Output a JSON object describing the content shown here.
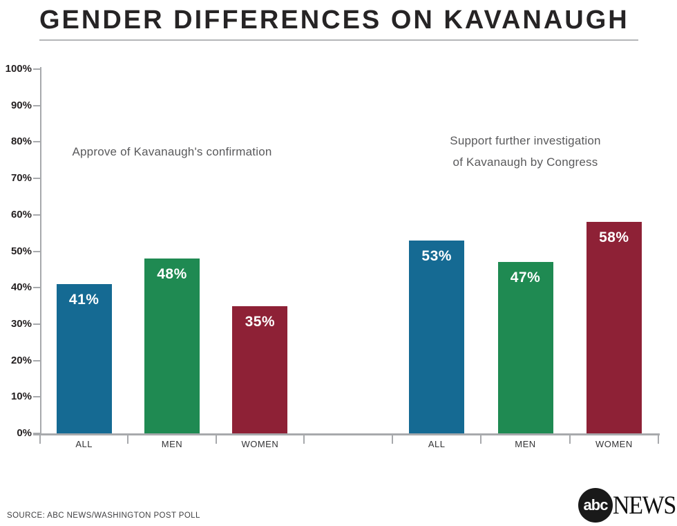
{
  "title": "GENDER DIFFERENCES ON KAVANAUGH",
  "footer": {
    "source": "SOURCE: ABC NEWS/WASHINGTON POST POLL",
    "logo": {
      "abc": "abc",
      "news": "NEWS"
    }
  },
  "chart_data": {
    "type": "bar",
    "title": "GENDER DIFFERENCES ON KAVANAUGH",
    "ylim": [
      0,
      100
    ],
    "y_ticks": [
      0,
      10,
      20,
      30,
      40,
      50,
      60,
      70,
      80,
      90,
      100
    ],
    "y_tick_suffix": "%",
    "grid": false,
    "legend": "none",
    "value_label_suffix": "%",
    "colors": {
      "ALL": "#156a93",
      "MEN": "#1f8a52",
      "WOMEN": "#8e2136"
    },
    "groups": [
      {
        "annotation_lines": [
          "Approve of Kavanaugh's confirmation"
        ],
        "categories": [
          "ALL",
          "MEN",
          "WOMEN"
        ],
        "values": [
          41,
          48,
          35
        ]
      },
      {
        "annotation_lines": [
          "Support further investigation",
          "of Kavanaugh by Congress"
        ],
        "categories": [
          "ALL",
          "MEN",
          "WOMEN"
        ],
        "values": [
          53,
          47,
          58
        ]
      }
    ],
    "source": "SOURCE: ABC NEWS/WASHINGTON POST POLL"
  }
}
